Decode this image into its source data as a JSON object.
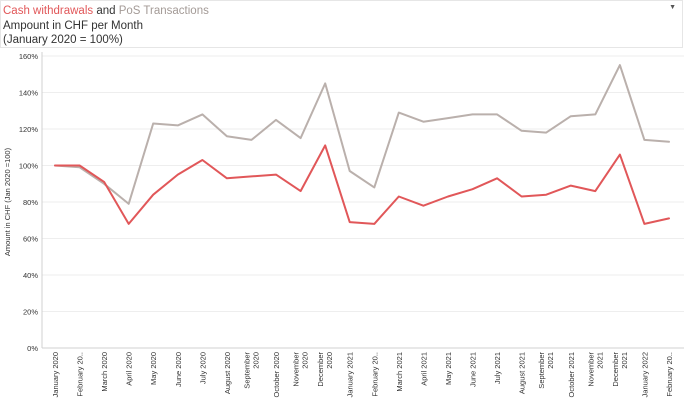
{
  "header": {
    "title_cash": "Cash withdrawals",
    "title_and": " and ",
    "title_pos": "PoS Transactions",
    "subtitle": "Ampount in CHF per Month",
    "subtitle2": "(January 2020 = 100%)"
  },
  "colors": {
    "cash": "#e15759",
    "pos": "#bab0ac",
    "grid": "#eeeeee",
    "axis": "#d0d0d0"
  },
  "chart_data": {
    "type": "line",
    "ylabel": "Amount in CHF (Jan 2020 =100)",
    "xlabel": "",
    "ylim": [
      0,
      160
    ],
    "yticks": [
      "0%",
      "20%",
      "40%",
      "60%",
      "80%",
      "100%",
      "120%",
      "140%",
      "160%"
    ],
    "grid": true,
    "legend": "none (colored title words)",
    "categories": [
      [
        "January 2020"
      ],
      [
        "February 20.."
      ],
      [
        "March 2020"
      ],
      [
        "April 2020"
      ],
      [
        "May 2020"
      ],
      [
        "June 2020"
      ],
      [
        "July 2020"
      ],
      [
        "August 2020"
      ],
      [
        "September",
        "2020"
      ],
      [
        "October 2020"
      ],
      [
        "November",
        "2020"
      ],
      [
        "December",
        "2020"
      ],
      [
        "January 2021"
      ],
      [
        "February 20.."
      ],
      [
        "March 2021"
      ],
      [
        "April 2021"
      ],
      [
        "May 2021"
      ],
      [
        "June 2021"
      ],
      [
        "July 2021"
      ],
      [
        "August 2021"
      ],
      [
        "September",
        "2021"
      ],
      [
        "October 2021"
      ],
      [
        "November",
        "2021"
      ],
      [
        "December",
        "2021"
      ],
      [
        "January 2022"
      ],
      [
        "February 20.."
      ]
    ],
    "series": [
      {
        "name": "PoS Transactions",
        "color": "#bab0ac",
        "values": [
          100,
          99,
          90,
          79,
          123,
          122,
          128,
          116,
          114,
          125,
          115,
          145,
          97,
          88,
          129,
          124,
          126,
          128,
          128,
          119,
          118,
          127,
          128,
          155,
          114,
          113
        ]
      },
      {
        "name": "Cash withdrawals",
        "color": "#e15759",
        "values": [
          100,
          100,
          91,
          68,
          84,
          95,
          103,
          93,
          94,
          95,
          86,
          111,
          69,
          68,
          83,
          78,
          83,
          87,
          93,
          83,
          84,
          89,
          86,
          106,
          68,
          71
        ]
      }
    ]
  }
}
